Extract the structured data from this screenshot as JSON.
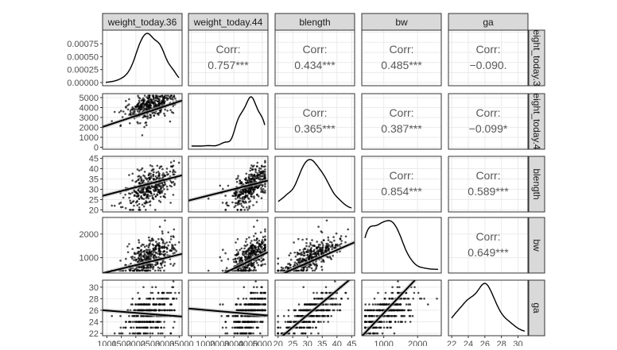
{
  "chart_data": {
    "type": "scatter",
    "title": "",
    "variables": [
      {
        "name": "weight_today.36",
        "row_label": "eight_today.3",
        "ticks": [
          1000,
          1500,
          2000,
          2500,
          3000,
          3500
        ],
        "tick_labels": [
          "1000",
          "1500",
          "2000",
          "2500",
          "3000",
          "3500"
        ],
        "range": [
          850,
          3600
        ],
        "mean": 2500,
        "sd": 420
      },
      {
        "name": "weight_today.44",
        "row_label": "eight_today.4",
        "ticks": [
          0,
          1000,
          2000,
          3000,
          4000,
          5000
        ],
        "tick_labels": [
          "0",
          "1000",
          "2000",
          "3000",
          "4000",
          "5000"
        ],
        "range": [
          -200,
          5400
        ],
        "mean": 4100,
        "sd": 650
      },
      {
        "name": "blength",
        "row_label": "blength",
        "ticks": [
          20,
          25,
          30,
          35,
          40,
          45
        ],
        "tick_labels": [
          "20",
          "25",
          "30",
          "35",
          "40",
          "45"
        ],
        "range": [
          19,
          46
        ],
        "mean": 31,
        "sd": 4
      },
      {
        "name": "bw",
        "row_label": "bw",
        "ticks": [
          1000,
          2000
        ],
        "tick_labels": [
          "1000",
          "2000"
        ],
        "range": [
          350,
          2700
        ],
        "mean": 1000,
        "sd": 380
      },
      {
        "name": "ga",
        "row_label": "ga",
        "ticks": [
          22,
          24,
          26,
          28,
          30
        ],
        "tick_labels": [
          "22",
          "24",
          "26",
          "28",
          "30"
        ],
        "range": [
          21.6,
          31.2
        ],
        "mean": 25.5,
        "sd": 1.9
      }
    ],
    "diag_y_ticks": [
      0,
      0.00025,
      0.0005,
      0.00075
    ],
    "diag_y_tick_labels": [
      "0.00000",
      "0.00025",
      "0.00050",
      "0.00075"
    ],
    "correlations": [
      {
        "row": 0,
        "col": 1,
        "label": "Corr:",
        "value": "0.757***"
      },
      {
        "row": 0,
        "col": 2,
        "label": "Corr:",
        "value": "0.434***"
      },
      {
        "row": 0,
        "col": 3,
        "label": "Corr:",
        "value": "0.485***"
      },
      {
        "row": 0,
        "col": 4,
        "label": "Corr:",
        "value": "−0.090."
      },
      {
        "row": 1,
        "col": 2,
        "label": "Corr:",
        "value": "0.365***"
      },
      {
        "row": 1,
        "col": 3,
        "label": "Corr:",
        "value": "0.387***"
      },
      {
        "row": 1,
        "col": 4,
        "label": "Corr:",
        "value": "−0.099*"
      },
      {
        "row": 2,
        "col": 3,
        "label": "Corr:",
        "value": "0.854***"
      },
      {
        "row": 2,
        "col": 4,
        "label": "Corr:",
        "value": "0.589***"
      },
      {
        "row": 3,
        "col": 4,
        "label": "Corr:",
        "value": "0.649***"
      }
    ],
    "regression_lines": [
      {
        "row": 1,
        "col": 0,
        "x": [
          850,
          3600
        ],
        "y": [
          2050,
          4700
        ]
      },
      {
        "row": 2,
        "col": 0,
        "x": [
          850,
          3600
        ],
        "y": [
          26.8,
          36.8
        ]
      },
      {
        "row": 2,
        "col": 1,
        "x": [
          -200,
          5400
        ],
        "y": [
          24.5,
          34.2
        ]
      },
      {
        "row": 3,
        "col": 0,
        "x": [
          850,
          3600
        ],
        "y": [
          340,
          1160
        ]
      },
      {
        "row": 3,
        "col": 1,
        "x": [
          -200,
          5400
        ],
        "y": [
          -380,
          1230
        ]
      },
      {
        "row": 3,
        "col": 2,
        "x": [
          19,
          46
        ],
        "y": [
          180,
          1650
        ]
      },
      {
        "row": 4,
        "col": 0,
        "x": [
          850,
          3600
        ],
        "y": [
          26.0,
          24.9
        ]
      },
      {
        "row": 4,
        "col": 1,
        "x": [
          -200,
          5400
        ],
        "y": [
          26.3,
          25.1
        ]
      },
      {
        "row": 4,
        "col": 2,
        "x": [
          19,
          46
        ],
        "y": [
          20.5,
          32.0
        ]
      },
      {
        "row": 4,
        "col": 3,
        "x": [
          350,
          2700
        ],
        "y": [
          21.5,
          36.0
        ]
      }
    ],
    "grid": true,
    "colors": {
      "panel_border": "#333333",
      "strip_fill": "#d9d9d9",
      "grid": "#ebebeb",
      "points": "#000000",
      "corr_text": "#595959",
      "axis_text": "#4d4d4d"
    }
  }
}
